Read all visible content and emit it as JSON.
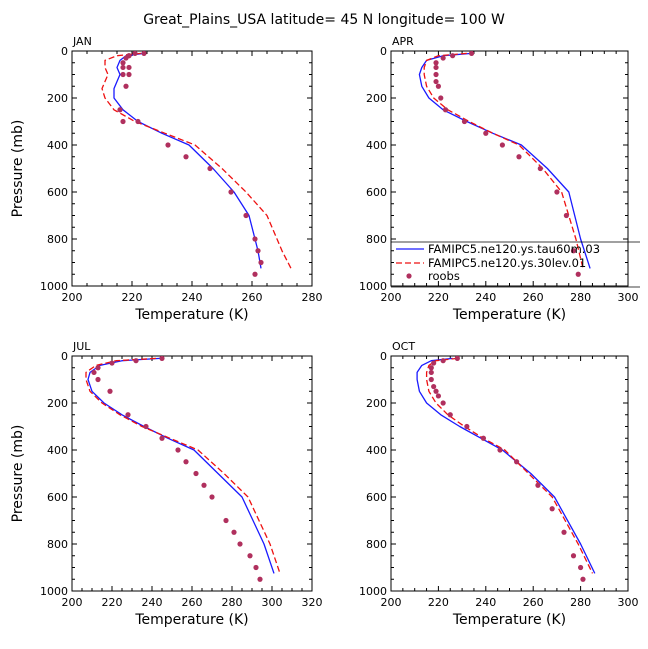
{
  "figure_title": "Great_Plains_USA   latitude= 45 N longitude= 100 W",
  "colors": {
    "model1": "#1a1aff",
    "model2": "#ee1111",
    "roobs": "#b0305e",
    "frame": "#000000"
  },
  "legend": {
    "items": [
      {
        "label": "FAMIPC5.ne120.ys.tau60m.03",
        "style": "solid-line",
        "color": "#1a1aff"
      },
      {
        "label": "FAMIPC5.ne120.ys.30lev.01",
        "style": "dashed-line",
        "color": "#ee1111"
      },
      {
        "label": "roobs",
        "style": "dots",
        "color": "#b0305e"
      }
    ]
  },
  "chart_data": [
    {
      "type": "line",
      "panel_label": "JAN",
      "xlabel": "Temperature (K)",
      "ylabel": "Pressure (mb)",
      "xlim": [
        200,
        280
      ],
      "ylim": [
        1000,
        0
      ],
      "y_reversed": true,
      "xticks": [
        "200",
        "220",
        "240",
        "260",
        "280"
      ],
      "yticks": [
        "0",
        "200",
        "400",
        "600",
        "800",
        "1000"
      ],
      "series": [
        {
          "name": "FAMIPC5.ne120.ys.tau60m.03",
          "style": "solid",
          "color": "#1a1aff",
          "x": [
            224,
            218,
            216,
            215,
            216,
            215,
            214,
            214,
            217,
            222,
            230,
            239,
            247,
            254,
            259,
            262,
            263
          ],
          "y": [
            10,
            20,
            40,
            70,
            100,
            130,
            160,
            200,
            250,
            300,
            350,
            400,
            500,
            600,
            700,
            850,
            925
          ]
        },
        {
          "name": "FAMIPC5.ne120.ys.30lev.01",
          "style": "dashed",
          "color": "#ee1111",
          "x": [
            223,
            215,
            211,
            211,
            212,
            211,
            210,
            211,
            214,
            221,
            231,
            241,
            250,
            258,
            265,
            270,
            273
          ],
          "y": [
            10,
            20,
            40,
            70,
            100,
            130,
            160,
            200,
            250,
            300,
            350,
            400,
            500,
            600,
            700,
            850,
            925
          ]
        },
        {
          "name": "roobs",
          "style": "dots",
          "color": "#b0305e",
          "x": [
            224,
            221,
            219,
            218,
            217,
            217,
            217,
            218,
            219,
            219,
            219,
            216,
            217,
            222,
            232,
            238,
            246,
            253,
            258,
            261,
            262,
            263,
            261
          ],
          "y": [
            10,
            10,
            20,
            30,
            50,
            70,
            100,
            150,
            20,
            70,
            100,
            250,
            300,
            300,
            400,
            450,
            500,
            600,
            700,
            800,
            850,
            900,
            950
          ]
        }
      ]
    },
    {
      "type": "line",
      "panel_label": "APR",
      "xlabel": "Temperature (K)",
      "ylabel": "Pressure (mb)",
      "xlim": [
        200,
        300
      ],
      "ylim": [
        1000,
        0
      ],
      "y_reversed": true,
      "xticks": [
        "200",
        "220",
        "240",
        "260",
        "280",
        "300"
      ],
      "yticks": [
        "0",
        "200",
        "400",
        "600",
        "800",
        "1000"
      ],
      "series": [
        {
          "name": "FAMIPC5.ne120.ys.tau60m.03",
          "style": "solid",
          "color": "#1a1aff",
          "x": [
            234,
            222,
            215,
            213,
            212,
            213,
            216,
            222,
            232,
            243,
            255,
            266,
            275,
            280,
            284
          ],
          "y": [
            10,
            20,
            40,
            70,
            100,
            150,
            200,
            250,
            300,
            350,
            400,
            500,
            600,
            800,
            925
          ]
        },
        {
          "name": "FAMIPC5.ne120.ys.30lev.01",
          "style": "dashed",
          "color": "#ee1111",
          "x": [
            232,
            220,
            215,
            214,
            214,
            215,
            218,
            224,
            233,
            243,
            254,
            264,
            272,
            278,
            281
          ],
          "y": [
            10,
            20,
            40,
            70,
            100,
            150,
            200,
            250,
            300,
            350,
            400,
            500,
            600,
            800,
            925
          ]
        },
        {
          "name": "roobs",
          "style": "dots",
          "color": "#b0305e",
          "x": [
            234,
            226,
            222,
            219,
            219,
            219,
            219,
            220,
            221,
            223,
            231,
            240,
            247,
            254,
            263,
            270,
            274,
            277,
            279
          ],
          "y": [
            10,
            20,
            30,
            50,
            70,
            100,
            130,
            150,
            200,
            250,
            300,
            350,
            400,
            450,
            500,
            600,
            700,
            850,
            950
          ]
        }
      ]
    },
    {
      "type": "line",
      "panel_label": "JUL",
      "xlabel": "Temperature (K)",
      "ylabel": "Pressure (mb)",
      "xlim": [
        200,
        320
      ],
      "ylim": [
        1000,
        0
      ],
      "y_reversed": true,
      "xticks": [
        "200",
        "220",
        "240",
        "260",
        "280",
        "300",
        "320"
      ],
      "yticks": [
        "0",
        "200",
        "400",
        "600",
        "800",
        "1000"
      ],
      "series": [
        {
          "name": "FAMIPC5.ne120.ys.tau60m.03",
          "style": "solid",
          "color": "#1a1aff",
          "x": [
            244,
            225,
            214,
            209,
            208,
            210,
            216,
            225,
            236,
            248,
            261,
            273,
            285,
            296,
            301
          ],
          "y": [
            10,
            20,
            40,
            70,
            100,
            150,
            200,
            250,
            300,
            350,
            400,
            500,
            600,
            800,
            925
          ]
        },
        {
          "name": "FAMIPC5.ne120.ys.30lev.01",
          "style": "dashed",
          "color": "#ee1111",
          "x": [
            242,
            222,
            212,
            207,
            207,
            209,
            215,
            224,
            235,
            249,
            263,
            276,
            288,
            299,
            304
          ],
          "y": [
            10,
            20,
            40,
            70,
            100,
            150,
            200,
            250,
            300,
            350,
            400,
            500,
            600,
            800,
            925
          ]
        },
        {
          "name": "roobs",
          "style": "dots",
          "color": "#b0305e",
          "x": [
            245,
            232,
            220,
            213,
            211,
            213,
            219,
            228,
            237,
            245,
            253,
            257,
            262,
            266,
            270,
            277,
            281,
            284,
            289,
            292,
            294
          ],
          "y": [
            10,
            20,
            30,
            50,
            70,
            100,
            150,
            250,
            300,
            350,
            400,
            450,
            500,
            550,
            600,
            700,
            750,
            800,
            850,
            900,
            950
          ]
        }
      ]
    },
    {
      "type": "line",
      "panel_label": "OCT",
      "xlabel": "Temperature (K)",
      "ylabel": "Pressure (mb)",
      "xlim": [
        200,
        300
      ],
      "ylim": [
        1000,
        0
      ],
      "y_reversed": true,
      "xticks": [
        "200",
        "220",
        "240",
        "260",
        "280",
        "300"
      ],
      "yticks": [
        "0",
        "200",
        "400",
        "600",
        "800",
        "1000"
      ],
      "series": [
        {
          "name": "FAMIPC5.ne120.ys.tau60m.03",
          "style": "solid",
          "color": "#1a1aff",
          "x": [
            226,
            217,
            213,
            211,
            211,
            212,
            215,
            221,
            229,
            238,
            247,
            259,
            269,
            280,
            286
          ],
          "y": [
            10,
            20,
            40,
            70,
            100,
            150,
            200,
            250,
            300,
            350,
            400,
            500,
            600,
            800,
            925
          ]
        },
        {
          "name": "FAMIPC5.ne120.ys.30lev.01",
          "style": "dashed",
          "color": "#ee1111",
          "x": [
            228,
            219,
            216,
            215,
            215,
            216,
            219,
            224,
            231,
            239,
            248,
            258,
            268,
            279,
            285
          ],
          "y": [
            10,
            20,
            40,
            70,
            100,
            150,
            200,
            250,
            300,
            350,
            400,
            500,
            600,
            800,
            925
          ]
        },
        {
          "name": "roobs",
          "style": "dots",
          "color": "#b0305e",
          "x": [
            228,
            222,
            218,
            217,
            217,
            217,
            218,
            219,
            220,
            222,
            225,
            232,
            239,
            246,
            253,
            262,
            268,
            273,
            277,
            280,
            281
          ],
          "y": [
            10,
            20,
            30,
            50,
            70,
            100,
            130,
            150,
            170,
            200,
            250,
            300,
            350,
            400,
            450,
            550,
            650,
            750,
            850,
            900,
            950
          ]
        }
      ]
    }
  ]
}
